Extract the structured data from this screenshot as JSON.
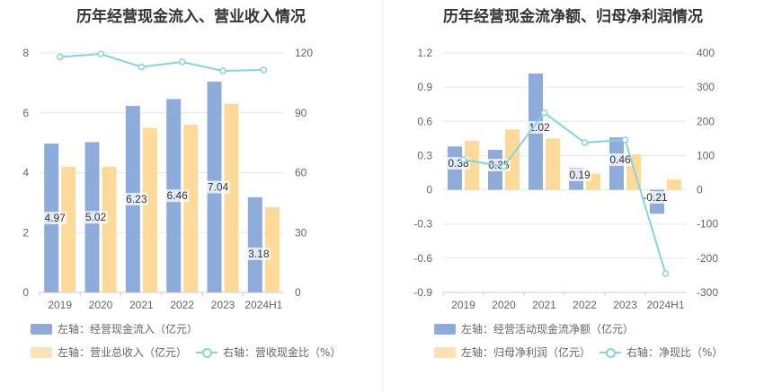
{
  "chart_data": [
    {
      "type": "bar",
      "title": "历年经营现金流入、营业收入情况",
      "categories": [
        "2019",
        "2020",
        "2021",
        "2022",
        "2023",
        "2024H1"
      ],
      "left_axis": {
        "ylim": [
          0,
          8
        ],
        "ticks": [
          "0",
          "2",
          "4",
          "6",
          "8"
        ]
      },
      "right_axis": {
        "ylim": [
          0,
          120
        ],
        "ticks": [
          "0",
          "30",
          "60",
          "90",
          "120"
        ]
      },
      "series": [
        {
          "name": "左轴：经营现金流入（亿元）",
          "kind": "bar",
          "axis": "left",
          "color": "#8eacdb",
          "values": [
            4.97,
            5.02,
            6.23,
            6.46,
            7.04,
            3.18
          ],
          "labels": [
            "4.97",
            "5.02",
            "6.23",
            "6.46",
            "7.04",
            "3.18"
          ]
        },
        {
          "name": "左轴：营业总收入（亿元）",
          "kind": "bar",
          "axis": "left",
          "color": "#fdd99a",
          "values": [
            4.2,
            4.2,
            5.5,
            5.6,
            6.3,
            2.85
          ]
        },
        {
          "name": "右轴：营收现金比（%）",
          "kind": "line",
          "axis": "right",
          "color": "#86d4db",
          "values": [
            118,
            119.5,
            113,
            115.5,
            111,
            111.5
          ]
        }
      ],
      "legend_placement": "bottom",
      "grid": true
    },
    {
      "type": "bar",
      "title": "历年经营现金流净额、归母净利润情况",
      "categories": [
        "2019",
        "2020",
        "2021",
        "2022",
        "2023",
        "2024H1"
      ],
      "left_axis": {
        "ylim": [
          -0.9,
          1.2
        ],
        "ticks": [
          "-0.9",
          "-0.6",
          "-0.3",
          "0",
          "0.3",
          "0.6",
          "0.9",
          "1.2"
        ]
      },
      "right_axis": {
        "ylim": [
          -300,
          400
        ],
        "ticks": [
          "-300",
          "-200",
          "-100",
          "0",
          "100",
          "200",
          "300",
          "400"
        ]
      },
      "series": [
        {
          "name": "左轴：经营活动现金流净额（亿元）",
          "kind": "bar",
          "axis": "left",
          "color": "#8eacdb",
          "values": [
            0.38,
            0.35,
            1.02,
            0.19,
            0.46,
            -0.21
          ],
          "labels": [
            "0.38",
            "0.35",
            "1.02",
            "0.19",
            "0.46",
            "-0.21"
          ]
        },
        {
          "name": "左轴：归母净利润（亿元）",
          "kind": "bar",
          "axis": "left",
          "color": "#fdd99a",
          "values": [
            0.43,
            0.53,
            0.45,
            0.14,
            0.31,
            0.09
          ]
        },
        {
          "name": "右轴：净现比（%）",
          "kind": "line",
          "axis": "right",
          "color": "#86d4db",
          "values": [
            88,
            68,
            225,
            138,
            146,
            -245
          ]
        }
      ],
      "legend_placement": "bottom",
      "grid": true
    }
  ]
}
